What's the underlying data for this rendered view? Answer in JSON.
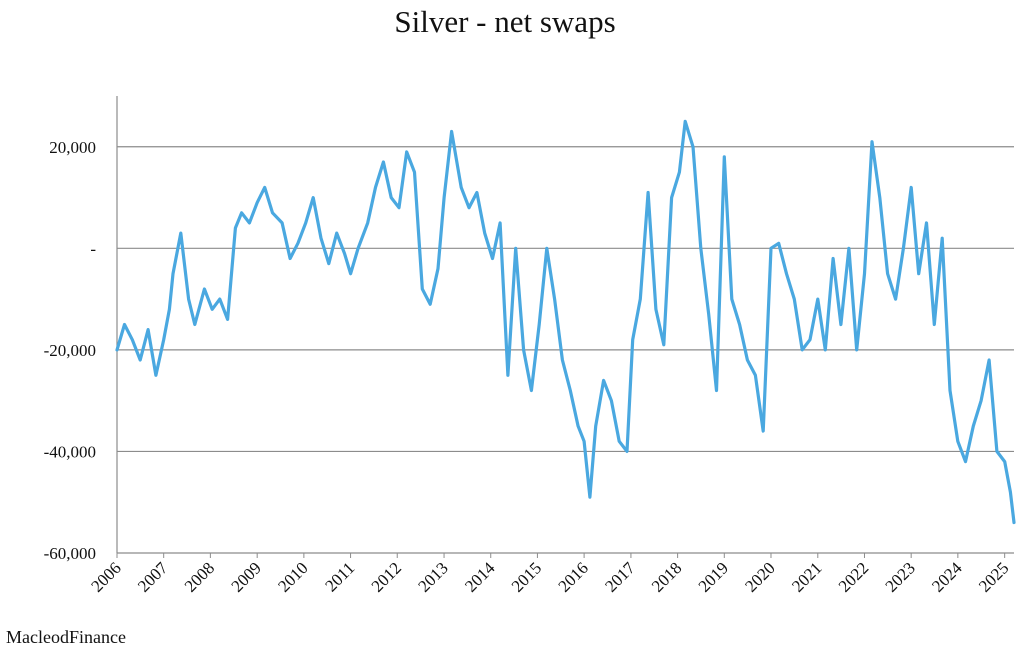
{
  "chart_data": {
    "type": "line",
    "title": "Silver - net swaps",
    "xlabel": "",
    "ylabel": "",
    "ylim": [
      -60000,
      30000
    ],
    "xlim": [
      "2006-01-01",
      "2025-03-15"
    ],
    "grid": true,
    "legend": "none",
    "y_ticks": [
      {
        "value": 20000,
        "label": "20,000"
      },
      {
        "value": 0,
        "label": "-"
      },
      {
        "value": -20000,
        "label": "-20,000"
      },
      {
        "value": -40000,
        "label": "-40,000"
      },
      {
        "value": -60000,
        "label": "-60,000"
      }
    ],
    "x_ticks": [
      "2006",
      "2007",
      "2008",
      "2009",
      "2010",
      "2011",
      "2012",
      "2013",
      "2014",
      "2015",
      "2016",
      "2017",
      "2018",
      "2019",
      "2020",
      "2021",
      "2022",
      "2023",
      "2024",
      "2025"
    ],
    "series": [
      {
        "color": "#4aa8e0",
        "x": [
          "2006-01-01",
          "2006-03-01",
          "2006-05-01",
          "2006-07-01",
          "2006-09-01",
          "2006-11-01",
          "2007-01-01",
          "2007-02-15",
          "2007-03-15",
          "2007-05-15",
          "2007-07-15",
          "2007-09-01",
          "2007-11-15",
          "2008-01-15",
          "2008-03-15",
          "2008-05-15",
          "2008-07-15",
          "2008-09-01",
          "2008-11-01",
          "2009-01-01",
          "2009-03-01",
          "2009-05-01",
          "2009-07-15",
          "2009-09-15",
          "2009-11-15",
          "2010-01-15",
          "2010-03-15",
          "2010-05-15",
          "2010-07-15",
          "2010-09-15",
          "2010-11-15",
          "2011-01-01",
          "2011-03-01",
          "2011-05-15",
          "2011-07-15",
          "2011-09-15",
          "2011-11-15",
          "2012-01-15",
          "2012-03-15",
          "2012-05-15",
          "2012-07-15",
          "2012-09-15",
          "2012-11-15",
          "2013-01-01",
          "2013-03-01",
          "2013-05-15",
          "2013-07-15",
          "2013-09-15",
          "2013-11-15",
          "2014-01-15",
          "2014-03-15",
          "2014-05-15",
          "2014-07-15",
          "2014-09-15",
          "2014-11-15",
          "2015-01-15",
          "2015-03-15",
          "2015-05-15",
          "2015-07-15",
          "2015-09-15",
          "2015-11-15",
          "2016-01-01",
          "2016-02-15",
          "2016-04-01",
          "2016-06-01",
          "2016-08-01",
          "2016-10-01",
          "2016-12-01",
          "2017-01-15",
          "2017-03-15",
          "2017-05-15",
          "2017-07-15",
          "2017-09-15",
          "2017-11-15",
          "2018-01-15",
          "2018-03-01",
          "2018-05-01",
          "2018-07-01",
          "2018-09-01",
          "2018-11-01",
          "2019-01-01",
          "2019-03-01",
          "2019-05-01",
          "2019-07-01",
          "2019-09-01",
          "2019-11-01",
          "2020-01-01",
          "2020-03-01",
          "2020-05-01",
          "2020-07-01",
          "2020-09-01",
          "2020-11-01",
          "2021-01-01",
          "2021-03-01",
          "2021-05-01",
          "2021-07-01",
          "2021-09-01",
          "2021-11-01",
          "2022-01-01",
          "2022-03-01",
          "2022-05-01",
          "2022-07-01",
          "2022-09-01",
          "2022-11-01",
          "2023-01-01",
          "2023-03-01",
          "2023-05-01",
          "2023-07-01",
          "2023-09-01",
          "2023-11-01",
          "2024-01-01",
          "2024-03-01",
          "2024-05-01",
          "2024-07-01",
          "2024-09-01",
          "2024-11-01",
          "2025-01-01",
          "2025-02-15",
          "2025-03-15"
        ],
        "y": [
          -20000,
          -15000,
          -18000,
          -22000,
          -16000,
          -25000,
          -18000,
          -12000,
          -5000,
          3000,
          -10000,
          -15000,
          -8000,
          -12000,
          -10000,
          -14000,
          4000,
          7000,
          5000,
          9000,
          12000,
          7000,
          5000,
          -2000,
          1000,
          5000,
          10000,
          2000,
          -3000,
          3000,
          -1000,
          -5000,
          0,
          5000,
          12000,
          17000,
          10000,
          8000,
          19000,
          15000,
          -8000,
          -11000,
          -4000,
          10000,
          23000,
          12000,
          8000,
          11000,
          3000,
          -2000,
          5000,
          -25000,
          0,
          -20000,
          -28000,
          -15000,
          0,
          -10000,
          -22000,
          -28000,
          -35000,
          -38000,
          -49000,
          -35000,
          -26000,
          -30000,
          -38000,
          -40000,
          -18000,
          -10000,
          11000,
          -12000,
          -19000,
          10000,
          15000,
          25000,
          20000,
          0,
          -13000,
          -28000,
          18000,
          -10000,
          -15000,
          -22000,
          -25000,
          -36000,
          0,
          1000,
          -5000,
          -10000,
          -20000,
          -18000,
          -10000,
          -20000,
          -2000,
          -15000,
          0,
          -20000,
          -5000,
          21000,
          10000,
          -5000,
          -10000,
          0,
          12000,
          -5000,
          5000,
          -15000,
          2000,
          -28000,
          -38000,
          -42000,
          -35000,
          -30000,
          -22000,
          -40000,
          -42000,
          -48000,
          -54000
        ]
      }
    ]
  },
  "footer": {
    "source": "MacleodFinance"
  }
}
